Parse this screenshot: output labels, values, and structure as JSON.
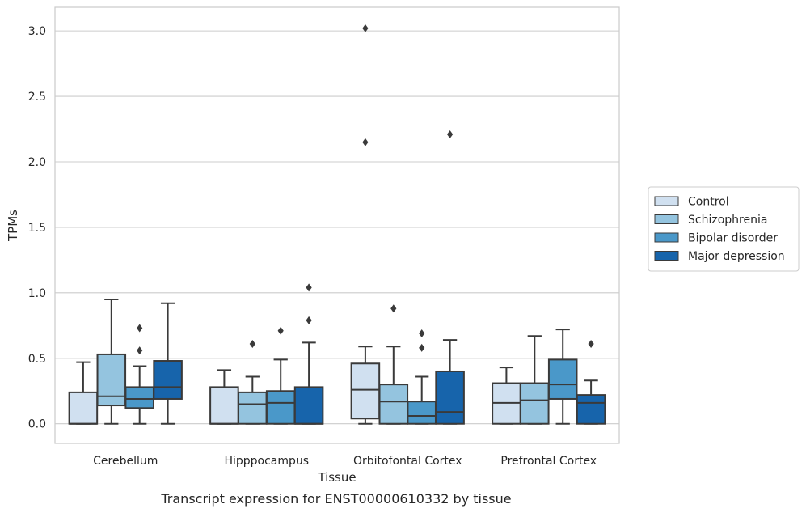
{
  "chart_data": {
    "type": "box",
    "caption": "Transcript expression for ENST00000610332 by tissue",
    "xlabel": "Tissue",
    "ylabel": "TPMs",
    "ylim": [
      -0.15,
      3.18
    ],
    "yticks": [
      0.0,
      0.5,
      1.0,
      1.5,
      2.0,
      2.5,
      3.0
    ],
    "ytick_labels": [
      "0.0",
      "0.5",
      "1.0",
      "1.5",
      "2.0",
      "2.5",
      "3.0"
    ],
    "grid": "horizontal",
    "legend_position": "right",
    "categories": [
      "Cerebellum",
      "Hipppocampus",
      "Orbitofontal Cortex",
      "Prefrontal Cortex"
    ],
    "series": [
      {
        "name": "Control",
        "color": "#d0e0f0",
        "boxes": [
          {
            "whislo": 0.0,
            "q1": 0.0,
            "med": 0.0,
            "q3": 0.24,
            "whishi": 0.47,
            "fliers": []
          },
          {
            "whislo": 0.0,
            "q1": 0.0,
            "med": 0.0,
            "q3": 0.28,
            "whishi": 0.41,
            "fliers": []
          },
          {
            "whislo": 0.0,
            "q1": 0.04,
            "med": 0.26,
            "q3": 0.46,
            "whishi": 0.59,
            "fliers": [
              2.15,
              3.02
            ]
          },
          {
            "whislo": 0.0,
            "q1": 0.0,
            "med": 0.16,
            "q3": 0.31,
            "whishi": 0.43,
            "fliers": []
          }
        ]
      },
      {
        "name": "Schizophrenia",
        "color": "#94c4df",
        "boxes": [
          {
            "whislo": 0.0,
            "q1": 0.14,
            "med": 0.21,
            "q3": 0.53,
            "whishi": 0.95,
            "fliers": []
          },
          {
            "whislo": 0.0,
            "q1": 0.0,
            "med": 0.15,
            "q3": 0.24,
            "whishi": 0.36,
            "fliers": [
              0.61
            ]
          },
          {
            "whislo": 0.0,
            "q1": 0.0,
            "med": 0.17,
            "q3": 0.3,
            "whishi": 0.59,
            "fliers": [
              0.88
            ]
          },
          {
            "whislo": 0.0,
            "q1": 0.0,
            "med": 0.18,
            "q3": 0.31,
            "whishi": 0.67,
            "fliers": []
          }
        ]
      },
      {
        "name": "Bipolar disorder",
        "color": "#4a98c9",
        "boxes": [
          {
            "whislo": 0.0,
            "q1": 0.12,
            "med": 0.19,
            "q3": 0.28,
            "whishi": 0.44,
            "fliers": [
              0.56,
              0.73
            ]
          },
          {
            "whislo": 0.0,
            "q1": 0.0,
            "med": 0.16,
            "q3": 0.25,
            "whishi": 0.49,
            "fliers": [
              0.71
            ]
          },
          {
            "whislo": 0.0,
            "q1": 0.0,
            "med": 0.06,
            "q3": 0.17,
            "whishi": 0.36,
            "fliers": [
              0.58,
              0.69
            ]
          },
          {
            "whislo": 0.0,
            "q1": 0.19,
            "med": 0.3,
            "q3": 0.49,
            "whishi": 0.72,
            "fliers": []
          }
        ]
      },
      {
        "name": "Major depression",
        "color": "#1764ab",
        "boxes": [
          {
            "whislo": 0.0,
            "q1": 0.19,
            "med": 0.28,
            "q3": 0.48,
            "whishi": 0.92,
            "fliers": []
          },
          {
            "whislo": 0.0,
            "q1": 0.0,
            "med": 0.0,
            "q3": 0.28,
            "whishi": 0.62,
            "fliers": [
              0.79,
              1.04
            ]
          },
          {
            "whislo": 0.0,
            "q1": 0.0,
            "med": 0.09,
            "q3": 0.4,
            "whishi": 0.64,
            "fliers": [
              2.21
            ]
          },
          {
            "whislo": 0.0,
            "q1": 0.0,
            "med": 0.16,
            "q3": 0.22,
            "whishi": 0.33,
            "fliers": [
              0.61
            ]
          }
        ]
      }
    ]
  }
}
